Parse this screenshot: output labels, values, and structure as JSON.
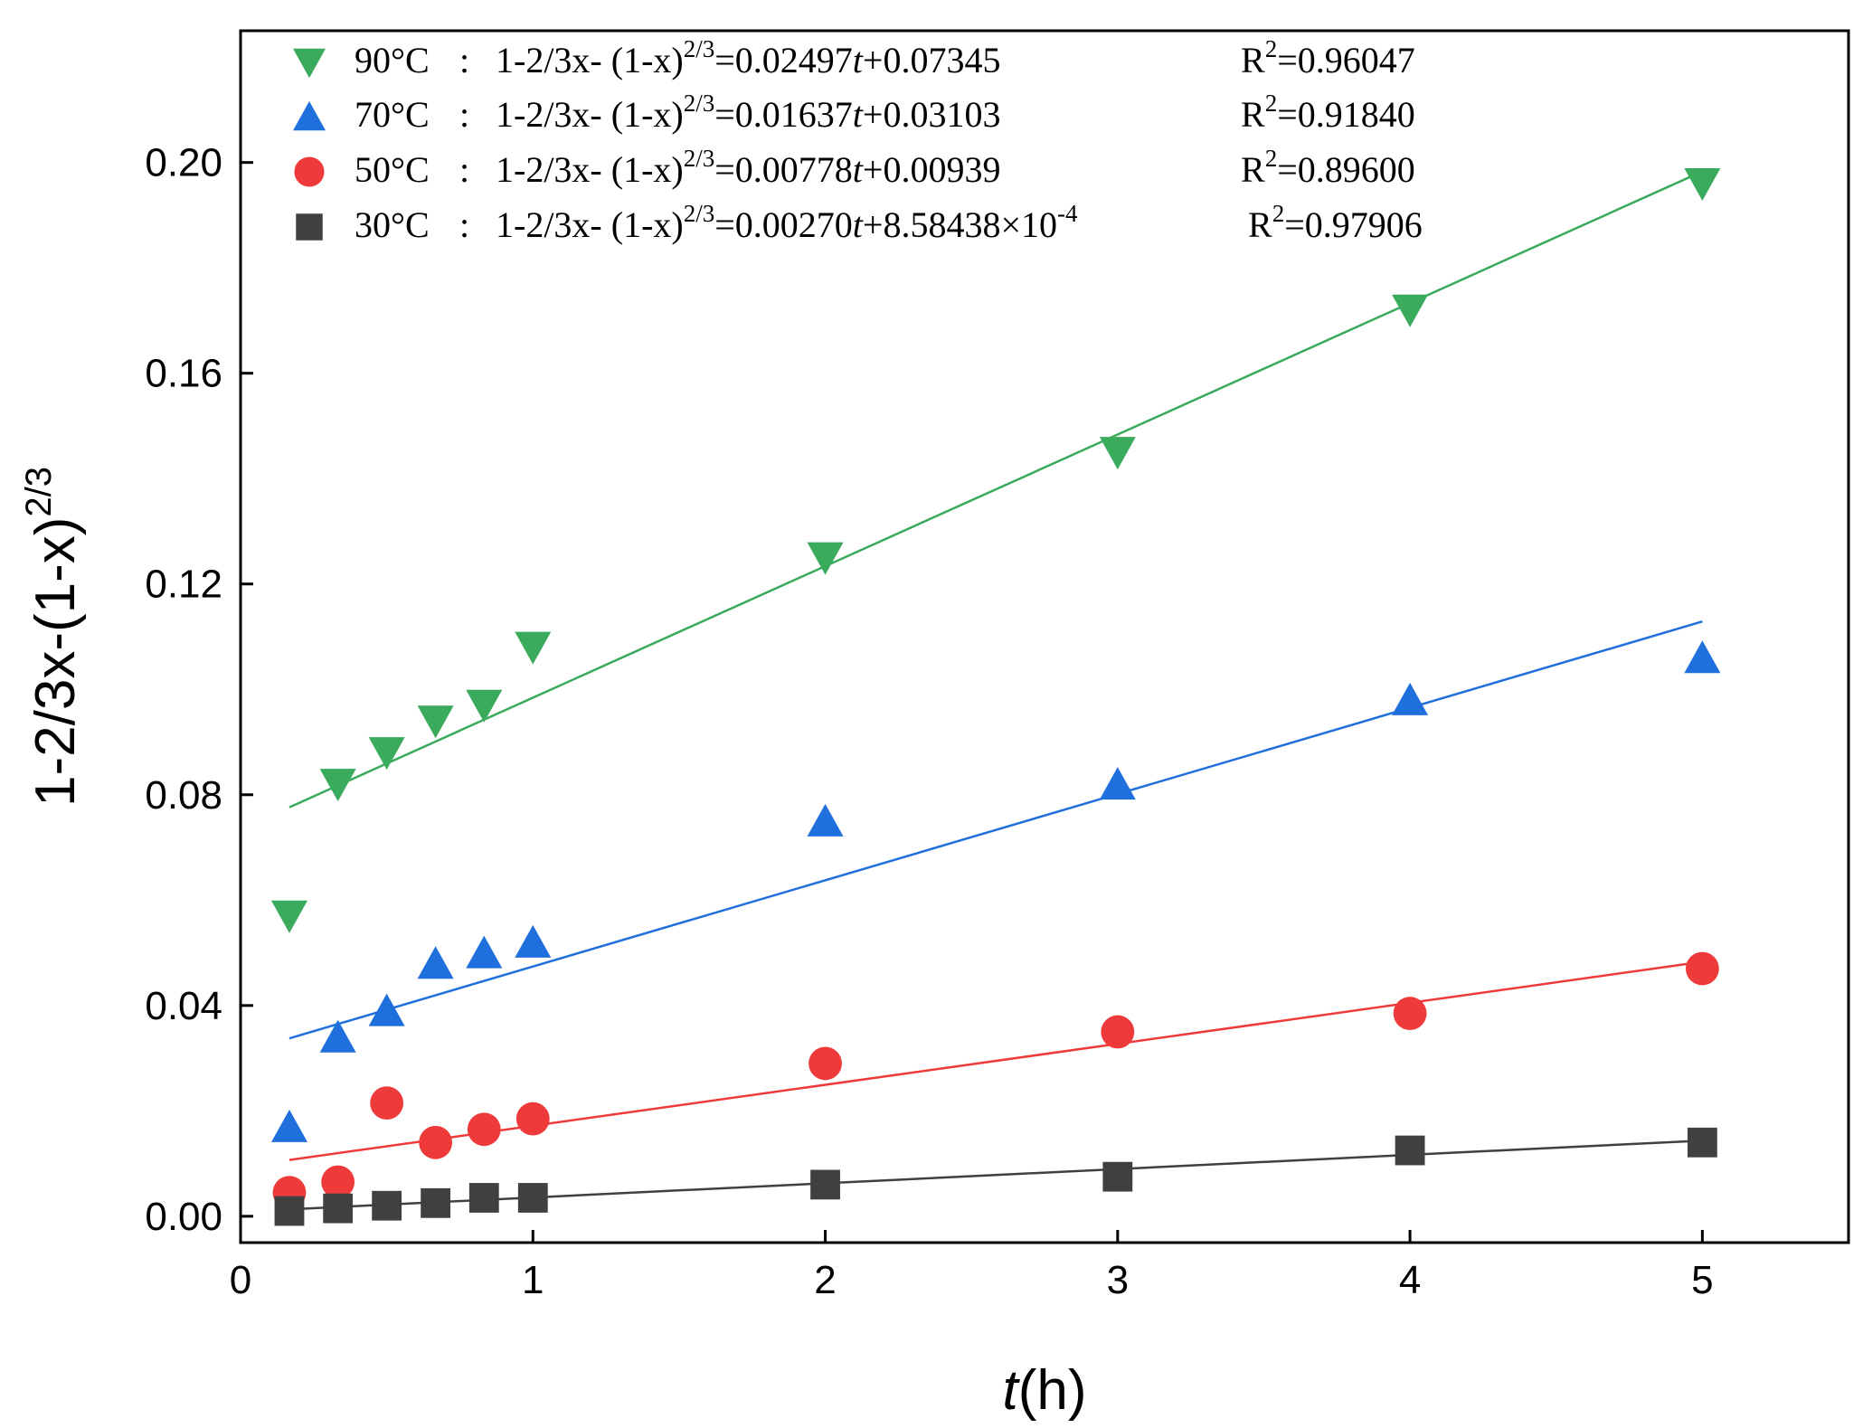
{
  "chart_data": {
    "type": "scatter",
    "xlabel_italic": "t",
    "xlabel_rest": "(h)",
    "ylabel_base": "1-2/3x-(1-x)",
    "ylabel_sup": "2/3",
    "xlim": [
      0,
      5.5
    ],
    "ylim": [
      -0.005,
      0.225
    ],
    "xticks": [
      0,
      1,
      2,
      3,
      4,
      5
    ],
    "xtick_labels": [
      "0",
      "1",
      "2",
      "3",
      "4",
      "5"
    ],
    "yticks": [
      0.0,
      0.04,
      0.08,
      0.12,
      0.16,
      0.2
    ],
    "ytick_labels": [
      "0.00",
      "0.04",
      "0.08",
      "0.12",
      "0.16",
      "0.20"
    ],
    "grid": false,
    "legend_position": "top-left",
    "series": [
      {
        "name": "90°C",
        "marker": "triangle-down",
        "color": "#3aaa5c",
        "x": [
          0.167,
          0.333,
          0.5,
          0.667,
          0.833,
          1,
          2,
          3,
          4,
          5
        ],
        "y": [
          0.057,
          0.082,
          0.088,
          0.094,
          0.097,
          0.108,
          0.125,
          0.145,
          0.172,
          0.196
        ],
        "fit_slope": 0.02497,
        "fit_intercept": 0.07345,
        "equation_prefix": "1-2/3x- (1-x)",
        "equation_sup": "2/3",
        "equation_eq": "=0.02497",
        "equation_t": "t",
        "equation_suffix": "+0.07345",
        "equation_suffix_sup": "",
        "r2_label": "R",
        "r2_sup": "2",
        "r2_value": "=0.96047"
      },
      {
        "name": "70°C",
        "marker": "triangle-up",
        "color": "#1f6fdd",
        "x": [
          0.167,
          0.333,
          0.5,
          0.667,
          0.833,
          1,
          2,
          3,
          4,
          5
        ],
        "y": [
          0.017,
          0.034,
          0.039,
          0.048,
          0.05,
          0.052,
          0.075,
          0.082,
          0.098,
          0.106
        ],
        "fit_slope": 0.01637,
        "fit_intercept": 0.03103,
        "equation_prefix": "1-2/3x- (1-x)",
        "equation_sup": "2/3",
        "equation_eq": "=0.01637",
        "equation_t": "t",
        "equation_suffix": "+0.03103",
        "equation_suffix_sup": "",
        "r2_label": "R",
        "r2_sup": "2",
        "r2_value": "=0.91840"
      },
      {
        "name": "50°C",
        "marker": "circle",
        "color": "#ee3a3a",
        "x": [
          0.167,
          0.333,
          0.5,
          0.667,
          0.833,
          1,
          2,
          3,
          4,
          5
        ],
        "y": [
          0.0045,
          0.0065,
          0.0215,
          0.014,
          0.0165,
          0.0185,
          0.029,
          0.035,
          0.0385,
          0.047
        ],
        "fit_slope": 0.00778,
        "fit_intercept": 0.00939,
        "equation_prefix": "1-2/3x- (1-x)",
        "equation_sup": "2/3",
        "equation_eq": "=0.00778",
        "equation_t": "t",
        "equation_suffix": "+0.00939",
        "equation_suffix_sup": "",
        "r2_label": "R",
        "r2_sup": "2",
        "r2_value": "=0.89600"
      },
      {
        "name": "30°C",
        "marker": "square",
        "color": "#404040",
        "x": [
          0.167,
          0.333,
          0.5,
          0.667,
          0.833,
          1,
          2,
          3,
          4,
          5
        ],
        "y": [
          0.001,
          0.0015,
          0.002,
          0.0025,
          0.0035,
          0.0035,
          0.006,
          0.0075,
          0.0125,
          0.014
        ],
        "fit_slope": 0.0027,
        "fit_intercept": 0.000858438,
        "equation_prefix": "1-2/3x- (1-x)",
        "equation_sup": "2/3",
        "equation_eq": "=0.00270",
        "equation_t": "t",
        "equation_suffix": "+8.58438×10",
        "equation_suffix_sup": "-4",
        "r2_label": "R",
        "r2_sup": "2",
        "r2_value": "=0.97906"
      }
    ]
  }
}
